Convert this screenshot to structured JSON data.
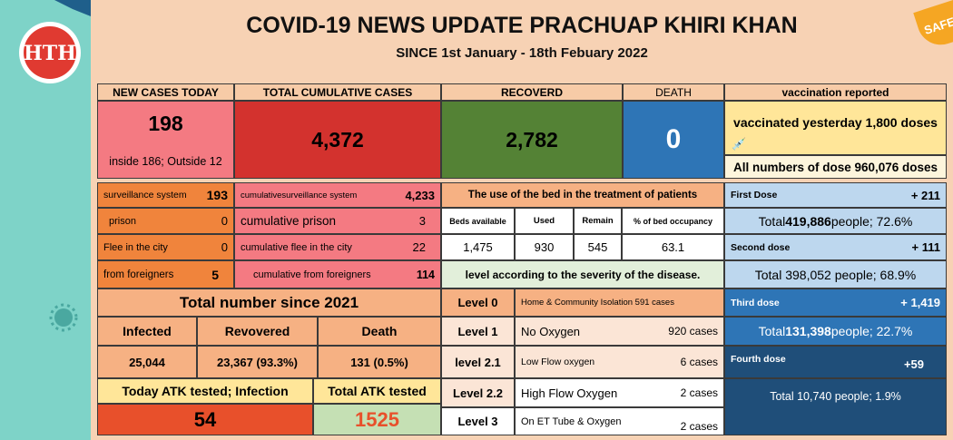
{
  "logo": {
    "text": "HTH"
  },
  "corner_badge": "SAFE",
  "title": "COVID-19 NEWS UPDATE PRACHUAP KHIRI KHAN",
  "subtitle": "SINCE 1st January - 18th Febuary 2022",
  "headers": {
    "new_cases": "NEW CASES TODAY",
    "total_cumulative": "TOTAL CUMULATIVE CASES",
    "recovered": "RECOVERD",
    "death": "DEATH",
    "vaccination": "vaccination reported"
  },
  "new_cases": {
    "value": "198",
    "detail": "inside 186; Outside 12"
  },
  "total_cumulative": "4,372",
  "recovered": "2,782",
  "death": "0",
  "vaccinated_yesterday": "vaccinated yesterday 1,800 doses",
  "all_doses": "All numbers of dose 960,076 doses",
  "breakdown": [
    {
      "label": "surveillance system",
      "value": "193",
      "cum_label": "cumulativesurveillance system",
      "cum_value": "4,233"
    },
    {
      "label": "prison",
      "value": "0",
      "cum_label": "cumulative prison",
      "cum_value": "3"
    },
    {
      "label": "Flee in the city",
      "value": "0",
      "cum_label": "cumulative flee in the city",
      "cum_value": "22"
    },
    {
      "label": "from foreigners",
      "value": "5",
      "cum_label": "cumulative  from foreigners",
      "cum_value": "114"
    }
  ],
  "bed": {
    "title": "The use of the bed in the treatment of patients",
    "columns": [
      "Beds available",
      "Used",
      "Remain",
      "% of bed occupancy"
    ],
    "values": [
      "1,475",
      "930",
      "545",
      "63.1"
    ],
    "severity_title": "level according to the severity of the disease."
  },
  "levels": [
    {
      "level": "Level 0",
      "desc": "Home & Community Isolation 591 cases",
      "cases": ""
    },
    {
      "level": "Level 1",
      "desc": "No Oxygen",
      "cases": "920 cases"
    },
    {
      "level": "level 2.1",
      "desc": "Low Flow oxygen",
      "cases": "6 cases"
    },
    {
      "level": "Level 2.2",
      "desc": "High Flow Oxygen",
      "cases": "2 cases"
    },
    {
      "level": "Level 3",
      "desc": "On ET Tube & Oxygen",
      "cases": "2 cases"
    }
  ],
  "doses": [
    {
      "label": "First Dose",
      "added": "+ 211",
      "total_prefix": "Total ",
      "total_bold": "419,886",
      "total_suffix": " people; 72.6%"
    },
    {
      "label": "Second dose",
      "added": "+ 111",
      "total_prefix": "Total 398,052 people; 68.9%",
      "total_bold": "",
      "total_suffix": ""
    },
    {
      "label": "Third dose",
      "added": "+ 1,419",
      "total_prefix": "Total ",
      "total_bold": "131,398",
      "total_suffix": " people; 22.7%"
    },
    {
      "label": "Fourth dose",
      "added": "+59",
      "total_prefix": "Total 10,740 people; 1.9%",
      "total_bold": "",
      "total_suffix": ""
    }
  ],
  "since2021": {
    "title": "Total number since 2021",
    "headers": [
      "Infected",
      "Revovered",
      "Death"
    ],
    "values": [
      "25,044",
      "23,367 (93.3%)",
      "131 (0.5%)"
    ]
  },
  "atk": {
    "today_label": "Today ATK tested; Infection",
    "total_label": "Total ATK tested",
    "today_value": "54",
    "total_value": "1525"
  }
}
